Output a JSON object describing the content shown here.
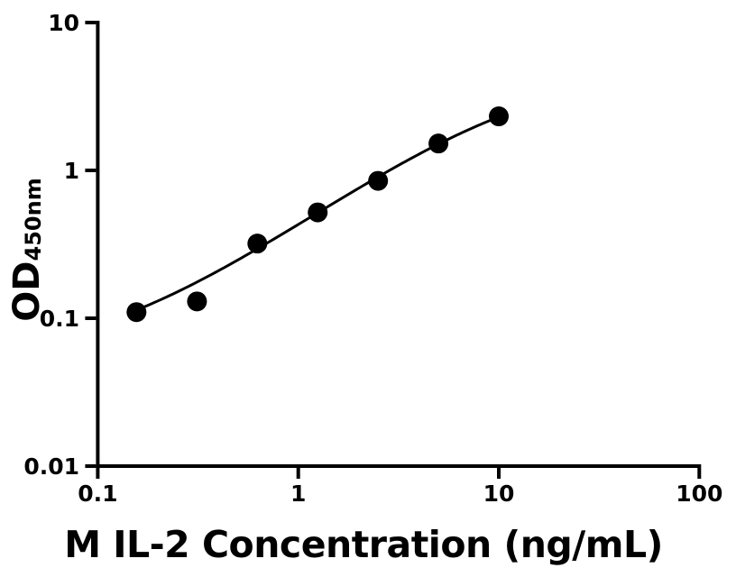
{
  "figure": {
    "background_color": "#ffffff",
    "ink_color": "#000000"
  },
  "chart_data": {
    "type": "scatter",
    "title": "",
    "xlabel": "M IL-2 Concentration (ng/mL)",
    "ylabel_main": "OD",
    "ylabel_sub": "450nm",
    "x_scale": "log10",
    "y_scale": "log10",
    "xlim": [
      0.1,
      100
    ],
    "ylim": [
      0.01,
      10
    ],
    "grid": false,
    "legend": false,
    "x_ticks": [
      {
        "value": 0.1,
        "label": "0.1"
      },
      {
        "value": 1,
        "label": "1"
      },
      {
        "value": 10,
        "label": "10"
      },
      {
        "value": 100,
        "label": "100"
      }
    ],
    "y_ticks": [
      {
        "value": 0.01,
        "label": "0.01"
      },
      {
        "value": 0.1,
        "label": "0.1"
      },
      {
        "value": 1,
        "label": "1"
      },
      {
        "value": 10,
        "label": "10"
      }
    ],
    "x": [
      0.156,
      0.3125,
      0.625,
      1.25,
      2.5,
      5,
      10
    ],
    "y": [
      0.11,
      0.13,
      0.32,
      0.52,
      0.85,
      1.52,
      2.32
    ],
    "marker": {
      "shape": "circle",
      "color": "#000000"
    },
    "fit_curve": {
      "model": "4PL",
      "a": 0.05,
      "b": 1.0,
      "c": 12.0,
      "d": 5.0,
      "x_range": [
        0.156,
        10
      ],
      "color": "#000000"
    }
  }
}
